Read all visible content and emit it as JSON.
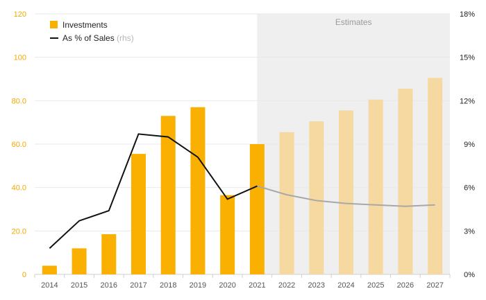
{
  "chart_data": {
    "type": "bar",
    "categories": [
      "2014",
      "2015",
      "2016",
      "2017",
      "2018",
      "2019",
      "2020",
      "2021",
      "2022",
      "2023",
      "2024",
      "2025",
      "2026",
      "2027"
    ],
    "estimate_from_index": 8,
    "estimates_label": "Estimates",
    "series": [
      {
        "name": "Investments",
        "type": "bar",
        "axis": "left",
        "values": [
          4,
          12,
          18.5,
          55.5,
          73,
          77,
          36.5,
          60,
          65.5,
          70.5,
          75.5,
          80.5,
          85.5,
          90.5
        ]
      },
      {
        "name": "As % of Sales",
        "name_suffix": "(rhs)",
        "type": "line",
        "axis": "right",
        "values": [
          1.8,
          3.7,
          4.4,
          9.7,
          9.5,
          8.1,
          5.2,
          6.1,
          5.5,
          5.1,
          4.9,
          4.8,
          4.7,
          4.8
        ]
      }
    ],
    "y_left": {
      "min": 0,
      "max": 120,
      "ticks": [
        "0",
        "20.0",
        "40.0",
        "60.0",
        "80.0",
        "100",
        "120"
      ]
    },
    "y_right": {
      "min": 0,
      "max": 18,
      "ticks": [
        "0%",
        "3%",
        "6%",
        "9%",
        "12%",
        "15%",
        "18%"
      ]
    },
    "grid": true,
    "legend": "top-left",
    "colors": {
      "bar": "#f9b000",
      "bar_estimate": "#f5d9a0",
      "line": "#111111",
      "line_estimate": "#a8a8a8",
      "estimate_bg": "#efefef",
      "grid": "#e8e8e8"
    }
  }
}
